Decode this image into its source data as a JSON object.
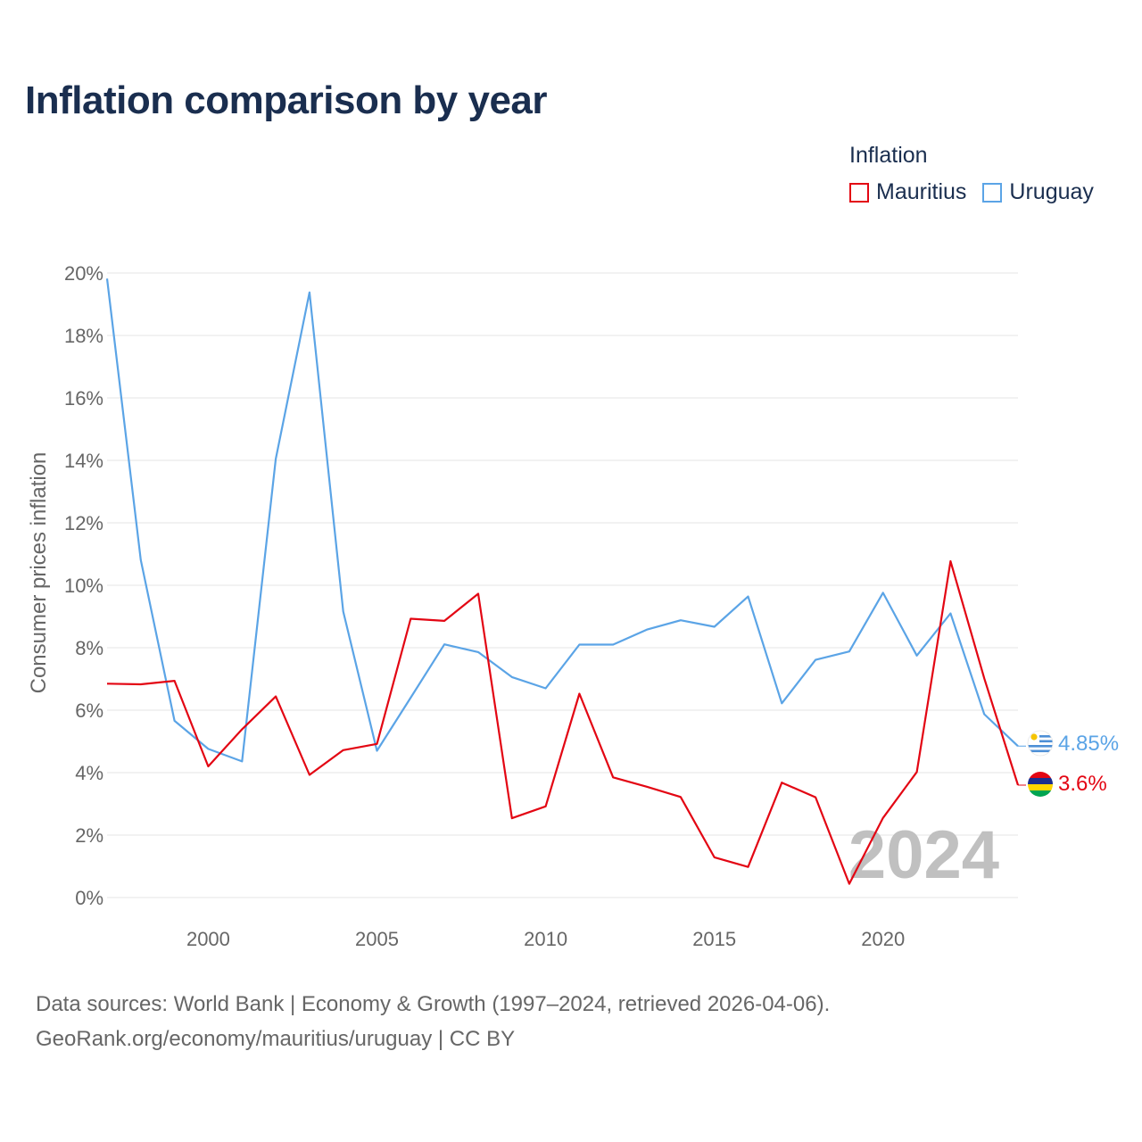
{
  "title": "Inflation comparison by year",
  "legend": {
    "title": "Inflation",
    "items": [
      {
        "label": "Mauritius",
        "color": "#e30613"
      },
      {
        "label": "Uruguay",
        "color": "#5ba4e6"
      }
    ]
  },
  "chart_data": {
    "type": "line",
    "title": "Inflation comparison by year",
    "xlabel": "",
    "ylabel": "Consumer prices inflation",
    "xlim": [
      1997,
      2024
    ],
    "ylim": [
      0,
      20
    ],
    "x_ticks": [
      2000,
      2005,
      2010,
      2015,
      2020
    ],
    "x_tick_labels": [
      "2000",
      "2005",
      "2010",
      "2015",
      "2020"
    ],
    "y_ticks": [
      0,
      2,
      4,
      6,
      8,
      10,
      12,
      14,
      16,
      18,
      20
    ],
    "y_tick_labels": [
      "0%",
      "2%",
      "4%",
      "6%",
      "8%",
      "10%",
      "12%",
      "14%",
      "16%",
      "18%",
      "20%"
    ],
    "grid": true,
    "year_watermark": "2024",
    "x": [
      1997,
      1998,
      1999,
      2000,
      2001,
      2002,
      2003,
      2004,
      2005,
      2006,
      2007,
      2008,
      2009,
      2010,
      2011,
      2012,
      2013,
      2014,
      2015,
      2016,
      2017,
      2018,
      2019,
      2020,
      2021,
      2022,
      2023,
      2024
    ],
    "series": [
      {
        "name": "Mauritius",
        "color": "#e30613",
        "end_label": "3.6%",
        "values": [
          6.85,
          6.83,
          6.94,
          4.2,
          5.39,
          6.44,
          3.93,
          4.72,
          4.92,
          8.93,
          8.86,
          9.73,
          2.54,
          2.92,
          6.53,
          3.85,
          3.55,
          3.22,
          1.29,
          0.98,
          3.68,
          3.21,
          0.44,
          2.55,
          4.02,
          10.77,
          7.02,
          3.6
        ]
      },
      {
        "name": "Uruguay",
        "color": "#5ba4e6",
        "end_label": "4.85%",
        "values": [
          19.82,
          10.81,
          5.66,
          4.76,
          4.36,
          14.05,
          19.38,
          9.16,
          4.7,
          6.4,
          8.11,
          7.86,
          7.06,
          6.7,
          8.1,
          8.1,
          8.58,
          8.88,
          8.67,
          9.64,
          6.22,
          7.61,
          7.88,
          9.76,
          7.75,
          9.1,
          5.87,
          4.85
        ]
      }
    ]
  },
  "footer": {
    "line1": "Data sources: World Bank | Economy & Growth (1997–2024, retrieved 2026-04-06).",
    "line2": "GeoRank.org/economy/mauritius/uruguay | CC BY"
  }
}
